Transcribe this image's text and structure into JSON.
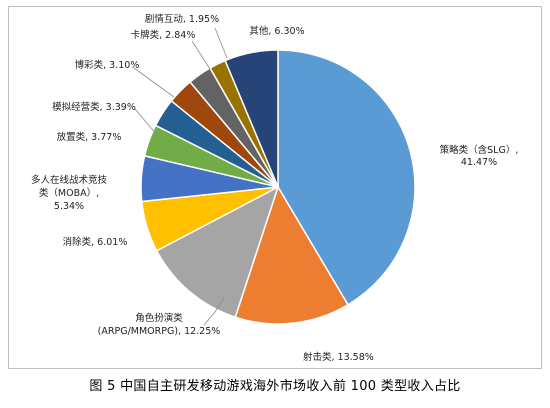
{
  "caption": "图 5  中国自主研发移动游戏海外市场收入前 100 类型收入占比",
  "chart_data": {
    "type": "pie",
    "title": "",
    "start_angle_deg": 0,
    "direction": "clockwise",
    "slices": [
      {
        "label_lines": [
          "策略类（含SLG）,",
          "41.47%"
        ],
        "name": "策略类（含SLG）",
        "value": 41.47,
        "color": "#5b9bd5"
      },
      {
        "label_lines": [
          "射击类, 13.58%"
        ],
        "name": "射击类",
        "value": 13.58,
        "color": "#ed7d31"
      },
      {
        "label_lines": [
          "角色扮演类",
          "(ARPG/MMORPG), 12.25%"
        ],
        "name": "角色扮演类(ARPG/MMORPG)",
        "value": 12.25,
        "color": "#a5a5a5"
      },
      {
        "label_lines": [
          "消除类, 6.01%"
        ],
        "name": "消除类",
        "value": 6.01,
        "color": "#ffc000"
      },
      {
        "label_lines": [
          "多人在线战术竞技",
          "类（MOBA）,",
          "5.34%"
        ],
        "name": "多人在线战术竞技类（MOBA）",
        "value": 5.34,
        "color": "#4472c4"
      },
      {
        "label_lines": [
          "放置类, 3.77%"
        ],
        "name": "放置类",
        "value": 3.77,
        "color": "#70ad47"
      },
      {
        "label_lines": [
          "模拟经营类, 3.39%"
        ],
        "name": "模拟经营类",
        "value": 3.39,
        "color": "#255e91"
      },
      {
        "label_lines": [
          "博彩类, 3.10%"
        ],
        "name": "博彩类",
        "value": 3.1,
        "color": "#9e480e"
      },
      {
        "label_lines": [
          "卡牌类, 2.84%"
        ],
        "name": "卡牌类",
        "value": 2.84,
        "color": "#636363"
      },
      {
        "label_lines": [
          "剧情互动, 1.95%"
        ],
        "name": "剧情互动",
        "value": 1.95,
        "color": "#997300"
      },
      {
        "label_lines": [
          "其他, 6.30%"
        ],
        "name": "其他",
        "value": 6.3,
        "color": "#264478"
      }
    ]
  }
}
